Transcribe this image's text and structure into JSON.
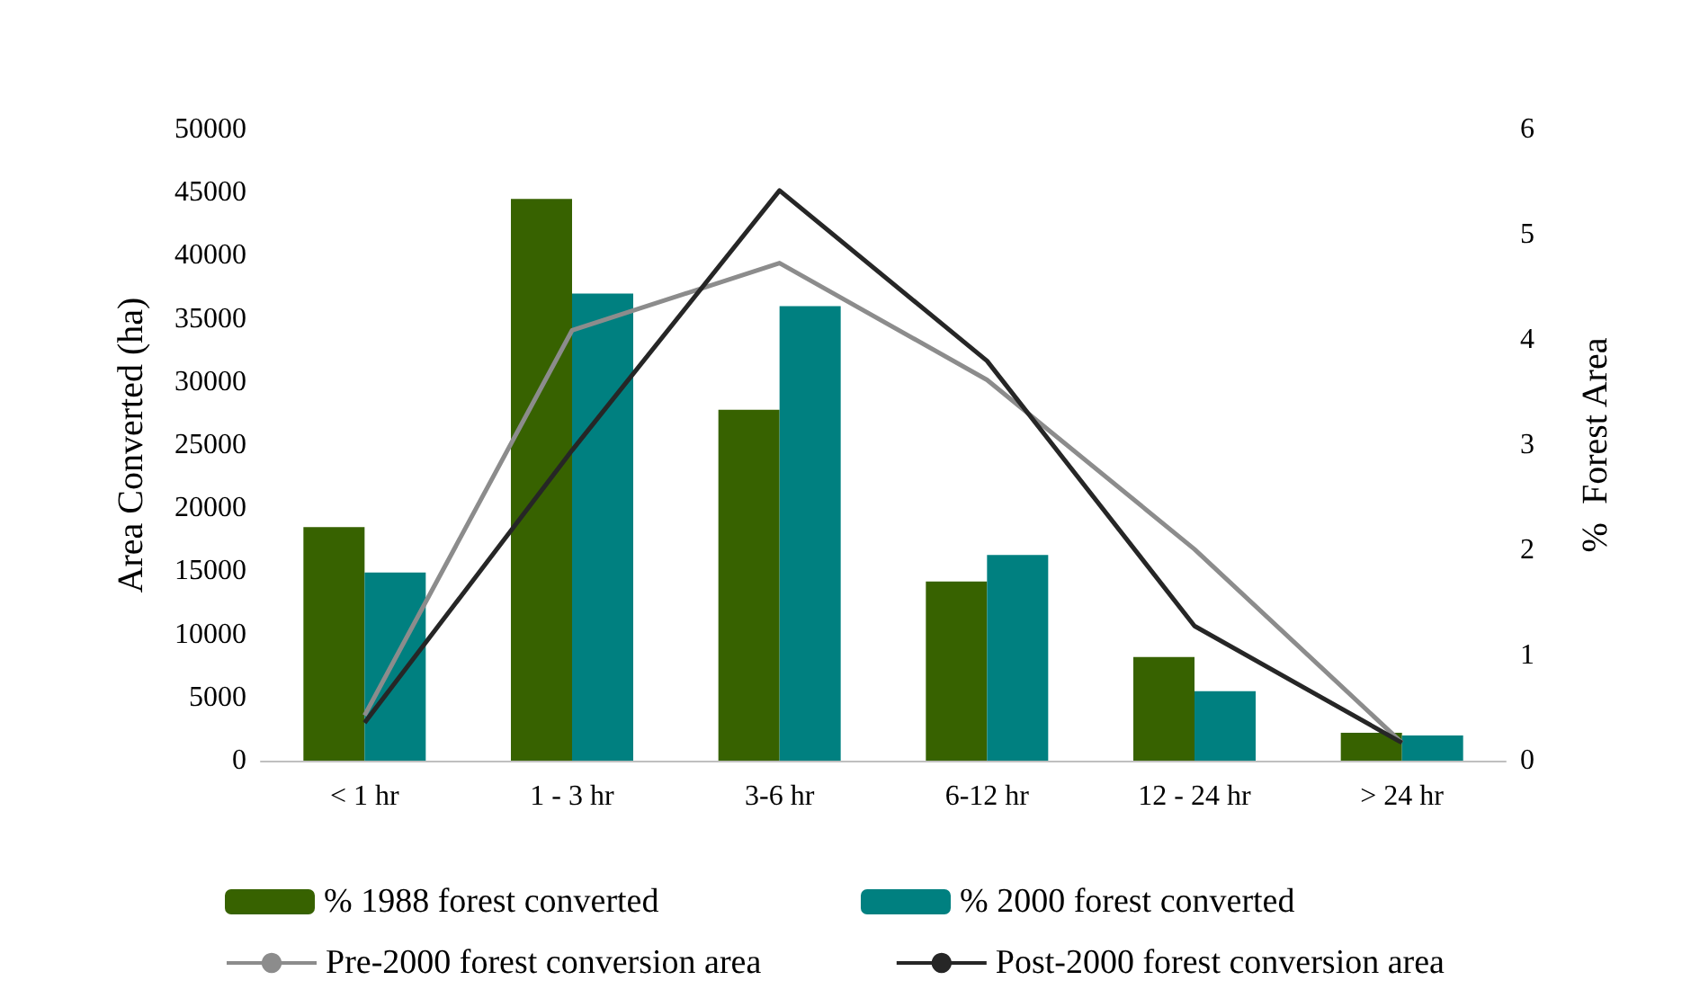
{
  "chart_data": {
    "type": "bar",
    "categories": [
      "< 1 hr",
      "1 - 3 hr",
      "3-6 hr",
      "6-12 hr",
      "12 - 24 hr",
      "> 24 hr"
    ],
    "ylabel": "Area Converted (ha)",
    "y2label": "%  Forest Area",
    "ylim": [
      0,
      50000
    ],
    "yticks": [
      0,
      5000,
      10000,
      15000,
      20000,
      25000,
      30000,
      35000,
      40000,
      45000,
      50000
    ],
    "y2lim": [
      0,
      6
    ],
    "y2ticks": [
      0,
      1,
      2,
      3,
      4,
      5,
      6
    ],
    "grid": false,
    "legend": "bottom",
    "marker": "none",
    "series": [
      {
        "name": "% 1988 forest converted",
        "color": "#376200",
        "values": [
          18500,
          44500,
          27800,
          14200,
          8200,
          2200
        ]
      },
      {
        "name": "% 2000 forest converted",
        "color": "#008080",
        "values": [
          14900,
          37000,
          36000,
          16300,
          5500,
          2000
        ]
      },
      {
        "name": "Pre-2000 forest conversion area",
        "type": "line",
        "axis": "y2",
        "color": "#8c8c8c",
        "values": [
          0.43,
          4.09,
          4.73,
          3.62,
          2.01,
          0.17
        ]
      },
      {
        "name": "Post-2000 forest conversion area",
        "type": "line",
        "axis": "y2",
        "color": "#262626",
        "values": [
          0.36,
          2.95,
          5.42,
          3.8,
          1.28,
          0.17
        ]
      }
    ]
  }
}
